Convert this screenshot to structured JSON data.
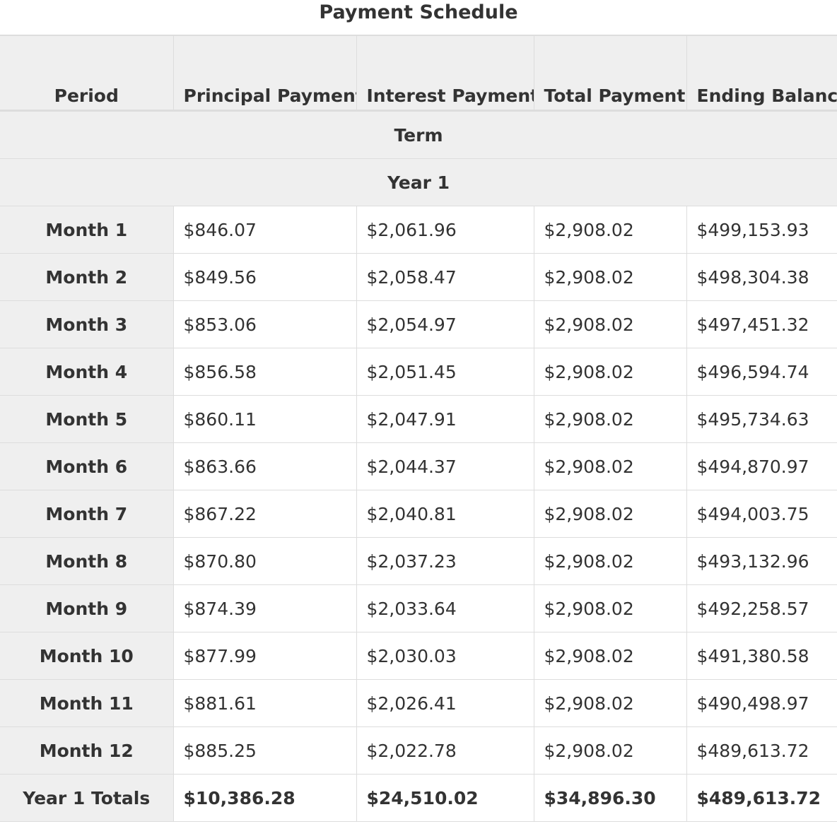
{
  "title": "Payment Schedule",
  "columns": {
    "period": "Period",
    "principal": "Principal Payment",
    "interest": "Interest Payment",
    "total": "Total Payment",
    "ending": "Ending Balance"
  },
  "groups": {
    "term": "Term",
    "year": "Year 1"
  },
  "rows": [
    {
      "period": "Month 1",
      "principal": "$846.07",
      "interest": "$2,061.96",
      "total": "$2,908.02",
      "ending": "$499,153.93"
    },
    {
      "period": "Month 2",
      "principal": "$849.56",
      "interest": "$2,058.47",
      "total": "$2,908.02",
      "ending": "$498,304.38"
    },
    {
      "period": "Month 3",
      "principal": "$853.06",
      "interest": "$2,054.97",
      "total": "$2,908.02",
      "ending": "$497,451.32"
    },
    {
      "period": "Month 4",
      "principal": "$856.58",
      "interest": "$2,051.45",
      "total": "$2,908.02",
      "ending": "$496,594.74"
    },
    {
      "period": "Month 5",
      "principal": "$860.11",
      "interest": "$2,047.91",
      "total": "$2,908.02",
      "ending": "$495,734.63"
    },
    {
      "period": "Month 6",
      "principal": "$863.66",
      "interest": "$2,044.37",
      "total": "$2,908.02",
      "ending": "$494,870.97"
    },
    {
      "period": "Month 7",
      "principal": "$867.22",
      "interest": "$2,040.81",
      "total": "$2,908.02",
      "ending": "$494,003.75"
    },
    {
      "period": "Month 8",
      "principal": "$870.80",
      "interest": "$2,037.23",
      "total": "$2,908.02",
      "ending": "$493,132.96"
    },
    {
      "period": "Month 9",
      "principal": "$874.39",
      "interest": "$2,033.64",
      "total": "$2,908.02",
      "ending": "$492,258.57"
    },
    {
      "period": "Month 10",
      "principal": "$877.99",
      "interest": "$2,030.03",
      "total": "$2,908.02",
      "ending": "$491,380.58"
    },
    {
      "period": "Month 11",
      "principal": "$881.61",
      "interest": "$2,026.41",
      "total": "$2,908.02",
      "ending": "$490,498.97"
    },
    {
      "period": "Month 12",
      "principal": "$885.25",
      "interest": "$2,022.78",
      "total": "$2,908.02",
      "ending": "$489,613.72"
    }
  ],
  "totals": {
    "period": "Year 1 Totals",
    "principal": "$10,386.28",
    "interest": "$24,510.02",
    "total": "$34,896.30",
    "ending": "$489,613.72"
  }
}
